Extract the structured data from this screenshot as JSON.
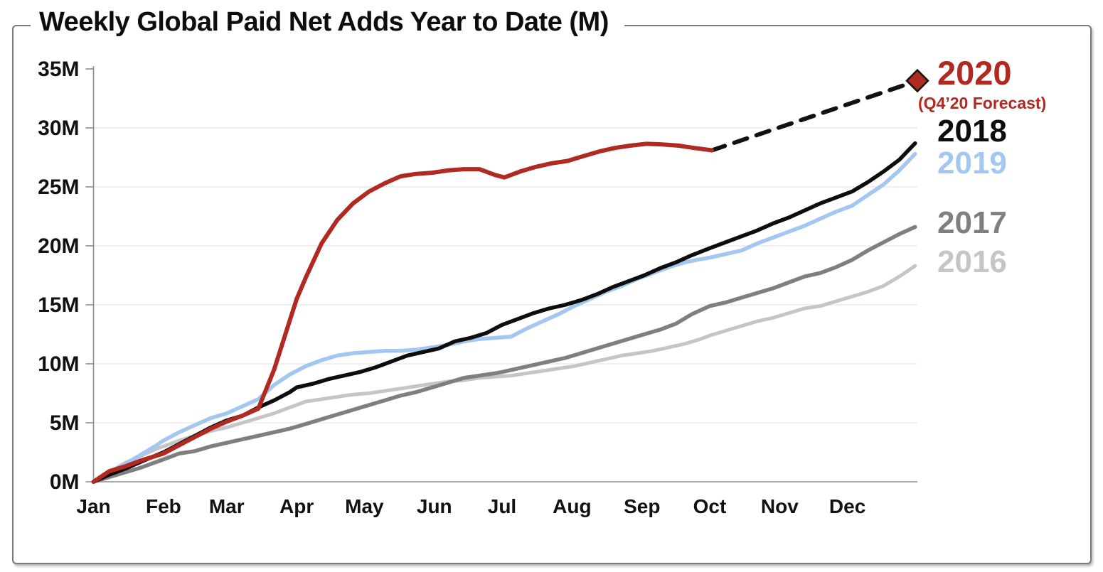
{
  "title": "Weekly Global Paid Net Adds Year to Date (M)",
  "legend": {
    "y2020": {
      "label": "2020",
      "note": "(Q4’20 Forecast)",
      "color": "#B02A21"
    },
    "y2018": {
      "label": "2018",
      "color": "#0D0D0D"
    },
    "y2019": {
      "label": "2019",
      "color": "#A3C7F0"
    },
    "y2017": {
      "label": "2017",
      "color": "#7F7F7F"
    },
    "y2016": {
      "label": "2016",
      "color": "#C5C5C5"
    }
  },
  "chart_data": {
    "type": "line",
    "title": "Weekly Global Paid Net Adds Year to Date (M)",
    "xlabel": "",
    "ylabel": "",
    "x_unit": "day_of_year",
    "x_domain": [
      0,
      365
    ],
    "ylim": [
      0,
      35
    ],
    "grid": "horizontal-light",
    "legend_position": "right",
    "y_ticks": [
      {
        "v": 0,
        "label": "0M"
      },
      {
        "v": 5,
        "label": "5M"
      },
      {
        "v": 10,
        "label": "10M"
      },
      {
        "v": 15,
        "label": "15M"
      },
      {
        "v": 20,
        "label": "20M"
      },
      {
        "v": 25,
        "label": "25M"
      },
      {
        "v": 30,
        "label": "30M"
      },
      {
        "v": 35,
        "label": "35M"
      }
    ],
    "x_ticks": [
      {
        "day": 0,
        "label": "Jan"
      },
      {
        "day": 31,
        "label": "Feb"
      },
      {
        "day": 59,
        "label": "Mar"
      },
      {
        "day": 90,
        "label": "Apr"
      },
      {
        "day": 120,
        "label": "May"
      },
      {
        "day": 151,
        "label": "Jun"
      },
      {
        "day": 181,
        "label": "Jul"
      },
      {
        "day": 212,
        "label": "Aug"
      },
      {
        "day": 243,
        "label": "Sep"
      },
      {
        "day": 273,
        "label": "Oct"
      },
      {
        "day": 304,
        "label": "Nov"
      },
      {
        "day": 334,
        "label": "Dec"
      }
    ],
    "series": [
      {
        "name": "2016",
        "color": "#C5C5C5",
        "width": 5,
        "style": "solid",
        "points": [
          [
            0,
            0
          ],
          [
            4,
            0.3
          ],
          [
            7,
            0.8
          ],
          [
            14,
            1.6
          ],
          [
            21,
            2.2
          ],
          [
            28,
            2.8
          ],
          [
            31,
            3.0
          ],
          [
            38,
            3.5
          ],
          [
            45,
            3.9
          ],
          [
            52,
            4.3
          ],
          [
            59,
            4.6
          ],
          [
            66,
            5.0
          ],
          [
            73,
            5.4
          ],
          [
            80,
            5.8
          ],
          [
            87,
            6.3
          ],
          [
            94,
            6.8
          ],
          [
            101,
            7.0
          ],
          [
            108,
            7.2
          ],
          [
            115,
            7.4
          ],
          [
            122,
            7.5
          ],
          [
            129,
            7.7
          ],
          [
            136,
            7.9
          ],
          [
            143,
            8.1
          ],
          [
            150,
            8.3
          ],
          [
            157,
            8.5
          ],
          [
            164,
            8.6
          ],
          [
            171,
            8.8
          ],
          [
            178,
            8.9
          ],
          [
            185,
            9.0
          ],
          [
            192,
            9.2
          ],
          [
            199,
            9.4
          ],
          [
            206,
            9.6
          ],
          [
            213,
            9.8
          ],
          [
            220,
            10.1
          ],
          [
            227,
            10.4
          ],
          [
            234,
            10.7
          ],
          [
            241,
            10.9
          ],
          [
            248,
            11.1
          ],
          [
            255,
            11.4
          ],
          [
            262,
            11.7
          ],
          [
            269,
            12.1
          ],
          [
            273,
            12.4
          ],
          [
            280,
            12.8
          ],
          [
            287,
            13.2
          ],
          [
            294,
            13.6
          ],
          [
            301,
            13.9
          ],
          [
            308,
            14.3
          ],
          [
            315,
            14.7
          ],
          [
            322,
            14.9
          ],
          [
            329,
            15.3
          ],
          [
            336,
            15.7
          ],
          [
            343,
            16.1
          ],
          [
            350,
            16.6
          ],
          [
            357,
            17.4
          ],
          [
            364,
            18.3
          ]
        ]
      },
      {
        "name": "2017",
        "color": "#7F7F7F",
        "width": 5.5,
        "style": "solid",
        "points": [
          [
            0,
            0
          ],
          [
            7,
            0.4
          ],
          [
            14,
            0.8
          ],
          [
            21,
            1.2
          ],
          [
            31,
            1.9
          ],
          [
            38,
            2.4
          ],
          [
            45,
            2.6
          ],
          [
            52,
            3.0
          ],
          [
            59,
            3.3
          ],
          [
            66,
            3.6
          ],
          [
            73,
            3.9
          ],
          [
            80,
            4.2
          ],
          [
            87,
            4.5
          ],
          [
            94,
            4.9
          ],
          [
            101,
            5.3
          ],
          [
            108,
            5.7
          ],
          [
            115,
            6.1
          ],
          [
            122,
            6.5
          ],
          [
            129,
            6.9
          ],
          [
            136,
            7.3
          ],
          [
            143,
            7.6
          ],
          [
            150,
            8.0
          ],
          [
            157,
            8.4
          ],
          [
            164,
            8.8
          ],
          [
            171,
            9.0
          ],
          [
            178,
            9.2
          ],
          [
            181,
            9.3
          ],
          [
            188,
            9.6
          ],
          [
            195,
            9.9
          ],
          [
            202,
            10.2
          ],
          [
            209,
            10.5
          ],
          [
            216,
            10.9
          ],
          [
            223,
            11.3
          ],
          [
            230,
            11.7
          ],
          [
            237,
            12.1
          ],
          [
            244,
            12.5
          ],
          [
            251,
            12.9
          ],
          [
            258,
            13.4
          ],
          [
            265,
            14.2
          ],
          [
            273,
            14.9
          ],
          [
            280,
            15.2
          ],
          [
            287,
            15.6
          ],
          [
            294,
            16.0
          ],
          [
            301,
            16.4
          ],
          [
            308,
            16.9
          ],
          [
            315,
            17.4
          ],
          [
            322,
            17.7
          ],
          [
            329,
            18.2
          ],
          [
            336,
            18.8
          ],
          [
            343,
            19.6
          ],
          [
            350,
            20.3
          ],
          [
            357,
            21.0
          ],
          [
            364,
            21.6
          ]
        ]
      },
      {
        "name": "2019",
        "color": "#A3C7F0",
        "width": 5.5,
        "style": "solid",
        "points": [
          [
            0,
            0
          ],
          [
            7,
            0.8
          ],
          [
            14,
            1.5
          ],
          [
            21,
            2.3
          ],
          [
            28,
            3.1
          ],
          [
            31,
            3.5
          ],
          [
            38,
            4.2
          ],
          [
            45,
            4.8
          ],
          [
            52,
            5.4
          ],
          [
            59,
            5.8
          ],
          [
            66,
            6.4
          ],
          [
            73,
            7.0
          ],
          [
            80,
            8.2
          ],
          [
            87,
            9.1
          ],
          [
            94,
            9.8
          ],
          [
            101,
            10.3
          ],
          [
            108,
            10.7
          ],
          [
            115,
            10.9
          ],
          [
            122,
            11.0
          ],
          [
            129,
            11.1
          ],
          [
            136,
            11.1
          ],
          [
            143,
            11.2
          ],
          [
            150,
            11.4
          ],
          [
            157,
            11.6
          ],
          [
            164,
            11.9
          ],
          [
            171,
            12.1
          ],
          [
            178,
            12.2
          ],
          [
            185,
            12.3
          ],
          [
            192,
            13.0
          ],
          [
            199,
            13.6
          ],
          [
            206,
            14.2
          ],
          [
            213,
            14.9
          ],
          [
            220,
            15.5
          ],
          [
            227,
            16.1
          ],
          [
            234,
            16.6
          ],
          [
            241,
            17.2
          ],
          [
            248,
            17.7
          ],
          [
            255,
            18.2
          ],
          [
            262,
            18.6
          ],
          [
            267,
            18.8
          ],
          [
            273,
            19.0
          ],
          [
            280,
            19.3
          ],
          [
            287,
            19.6
          ],
          [
            294,
            20.2
          ],
          [
            301,
            20.7
          ],
          [
            308,
            21.2
          ],
          [
            315,
            21.7
          ],
          [
            322,
            22.3
          ],
          [
            329,
            22.9
          ],
          [
            336,
            23.4
          ],
          [
            343,
            24.3
          ],
          [
            350,
            25.2
          ],
          [
            357,
            26.4
          ],
          [
            364,
            27.8
          ]
        ]
      },
      {
        "name": "2018",
        "color": "#0D0D0D",
        "width": 5.5,
        "style": "solid",
        "points": [
          [
            0,
            0
          ],
          [
            7,
            0.6
          ],
          [
            14,
            1.1
          ],
          [
            21,
            1.7
          ],
          [
            31,
            2.5
          ],
          [
            38,
            3.2
          ],
          [
            45,
            3.9
          ],
          [
            52,
            4.6
          ],
          [
            59,
            5.2
          ],
          [
            66,
            5.6
          ],
          [
            73,
            6.3
          ],
          [
            80,
            6.9
          ],
          [
            87,
            7.6
          ],
          [
            90,
            8.0
          ],
          [
            97,
            8.3
          ],
          [
            104,
            8.7
          ],
          [
            111,
            9.0
          ],
          [
            118,
            9.3
          ],
          [
            125,
            9.7
          ],
          [
            132,
            10.2
          ],
          [
            139,
            10.7
          ],
          [
            146,
            11.0
          ],
          [
            153,
            11.3
          ],
          [
            160,
            11.9
          ],
          [
            167,
            12.2
          ],
          [
            174,
            12.6
          ],
          [
            181,
            13.3
          ],
          [
            188,
            13.8
          ],
          [
            195,
            14.3
          ],
          [
            202,
            14.7
          ],
          [
            209,
            15.0
          ],
          [
            216,
            15.4
          ],
          [
            223,
            15.9
          ],
          [
            230,
            16.5
          ],
          [
            237,
            17.0
          ],
          [
            244,
            17.5
          ],
          [
            251,
            18.1
          ],
          [
            258,
            18.6
          ],
          [
            265,
            19.2
          ],
          [
            273,
            19.8
          ],
          [
            280,
            20.3
          ],
          [
            287,
            20.8
          ],
          [
            294,
            21.3
          ],
          [
            301,
            21.9
          ],
          [
            308,
            22.4
          ],
          [
            315,
            23.0
          ],
          [
            322,
            23.6
          ],
          [
            329,
            24.1
          ],
          [
            336,
            24.6
          ],
          [
            343,
            25.4
          ],
          [
            350,
            26.3
          ],
          [
            357,
            27.3
          ],
          [
            364,
            28.7
          ]
        ]
      },
      {
        "name": "2020 Q4 forecast",
        "color": "#111111",
        "width": 6,
        "style": "dashed",
        "points": [
          [
            274,
            28.1
          ],
          [
            365,
            34.0
          ]
        ],
        "end_marker": {
          "shape": "diamond",
          "fill": "#B02A21",
          "stroke": "#111111",
          "size": 30
        }
      },
      {
        "name": "2020",
        "color": "#B02A21",
        "width": 6,
        "style": "solid",
        "points": [
          [
            0,
            0
          ],
          [
            7,
            0.9
          ],
          [
            14,
            1.3
          ],
          [
            21,
            1.8
          ],
          [
            31,
            2.4
          ],
          [
            38,
            3.1
          ],
          [
            45,
            3.8
          ],
          [
            52,
            4.5
          ],
          [
            59,
            5.1
          ],
          [
            66,
            5.6
          ],
          [
            73,
            6.2
          ],
          [
            80,
            9.5
          ],
          [
            87,
            13.7
          ],
          [
            90,
            15.5
          ],
          [
            94,
            17.3
          ],
          [
            101,
            20.2
          ],
          [
            108,
            22.2
          ],
          [
            115,
            23.6
          ],
          [
            122,
            24.6
          ],
          [
            129,
            25.3
          ],
          [
            136,
            25.9
          ],
          [
            143,
            26.1
          ],
          [
            150,
            26.2
          ],
          [
            157,
            26.4
          ],
          [
            164,
            26.5
          ],
          [
            171,
            26.5
          ],
          [
            178,
            26.0
          ],
          [
            182,
            25.8
          ],
          [
            189,
            26.3
          ],
          [
            196,
            26.7
          ],
          [
            203,
            27.0
          ],
          [
            210,
            27.2
          ],
          [
            217,
            27.6
          ],
          [
            224,
            28.0
          ],
          [
            231,
            28.3
          ],
          [
            238,
            28.5
          ],
          [
            245,
            28.65
          ],
          [
            252,
            28.6
          ],
          [
            259,
            28.5
          ],
          [
            266,
            28.3
          ],
          [
            274,
            28.1
          ]
        ]
      }
    ]
  }
}
